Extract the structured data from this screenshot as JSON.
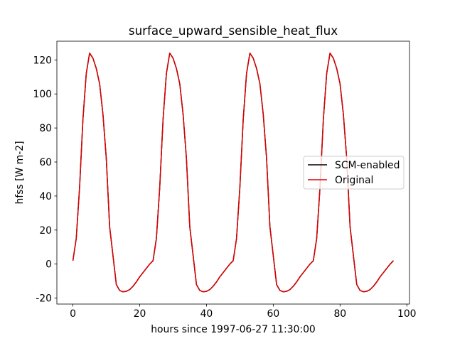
{
  "chart_data": {
    "type": "line",
    "title": "surface_upward_sensible_heat_flux",
    "xlabel": "hours since 1997-06-27 11:30:00",
    "ylabel": "hfss [W m-2]",
    "x": [
      0,
      1,
      2,
      3,
      4,
      5,
      6,
      7,
      8,
      9,
      10,
      11,
      12,
      13,
      14,
      15,
      16,
      17,
      18,
      19,
      20,
      21,
      22,
      23,
      24,
      25,
      26,
      27,
      28,
      29,
      30,
      31,
      32,
      33,
      34,
      35,
      36,
      37,
      38,
      39,
      40,
      41,
      42,
      43,
      44,
      45,
      46,
      47,
      48,
      49,
      50,
      51,
      52,
      53,
      54,
      55,
      56,
      57,
      58,
      59,
      60,
      61,
      62,
      63,
      64,
      65,
      66,
      67,
      68,
      69,
      70,
      71,
      72,
      73,
      74,
      75,
      76,
      77,
      78,
      79,
      80,
      81,
      82,
      83,
      84,
      85,
      86,
      87,
      88,
      89,
      90,
      91,
      92,
      93,
      94,
      95,
      96
    ],
    "series": [
      {
        "name": "SCM-enabled",
        "color": "#000000",
        "values": [
          2,
          15,
          45,
          85,
          112,
          124,
          121,
          115,
          106,
          88,
          62,
          22,
          5,
          -12,
          -15.5,
          -16.3,
          -16,
          -15,
          -13,
          -10.5,
          -7.5,
          -5,
          -2.5,
          0,
          2,
          15,
          45,
          85,
          112,
          124,
          121,
          115,
          106,
          88,
          62,
          22,
          5,
          -12,
          -15.5,
          -16.3,
          -16,
          -15,
          -13,
          -10.5,
          -7.5,
          -5,
          -2.5,
          0,
          2,
          15,
          45,
          85,
          112,
          124,
          121,
          115,
          106,
          88,
          62,
          22,
          5,
          -12,
          -15.5,
          -16.3,
          -16,
          -15,
          -13,
          -10.5,
          -7.5,
          -5,
          -2.5,
          0,
          2,
          15,
          45,
          85,
          112,
          124,
          121,
          115,
          106,
          88,
          62,
          22,
          5,
          -12,
          -15.5,
          -16.3,
          -16,
          -15,
          -13,
          -10.5,
          -7.5,
          -5,
          -2.5,
          0,
          2
        ]
      },
      {
        "name": "Original",
        "color": "#dd0000",
        "values": [
          2,
          15,
          45,
          85,
          112,
          124,
          121,
          115,
          106,
          88,
          62,
          22,
          5,
          -12,
          -15.5,
          -16.3,
          -16,
          -15,
          -13,
          -10.5,
          -7.5,
          -5,
          -2.5,
          0,
          2,
          15,
          45,
          85,
          112,
          124,
          121,
          115,
          106,
          88,
          62,
          22,
          5,
          -12,
          -15.5,
          -16.3,
          -16,
          -15,
          -13,
          -10.5,
          -7.5,
          -5,
          -2.5,
          0,
          2,
          15,
          45,
          85,
          112,
          124,
          121,
          115,
          106,
          88,
          62,
          22,
          5,
          -12,
          -15.5,
          -16.3,
          -16,
          -15,
          -13,
          -10.5,
          -7.5,
          -5,
          -2.5,
          0,
          2,
          15,
          45,
          85,
          112,
          124,
          121,
          115,
          106,
          88,
          62,
          22,
          5,
          -12,
          -15.5,
          -16.3,
          -16,
          -15,
          -13,
          -10.5,
          -7.5,
          -5,
          -2.5,
          0,
          2
        ]
      }
    ],
    "xlim": [
      -4.8,
      100.8
    ],
    "xticks": [
      0,
      20,
      40,
      60,
      80,
      100
    ],
    "ylim": [
      -23.5,
      131
    ],
    "yticks": [
      -20,
      0,
      20,
      40,
      60,
      80,
      100,
      120
    ],
    "grid": false,
    "legend": "center right"
  }
}
